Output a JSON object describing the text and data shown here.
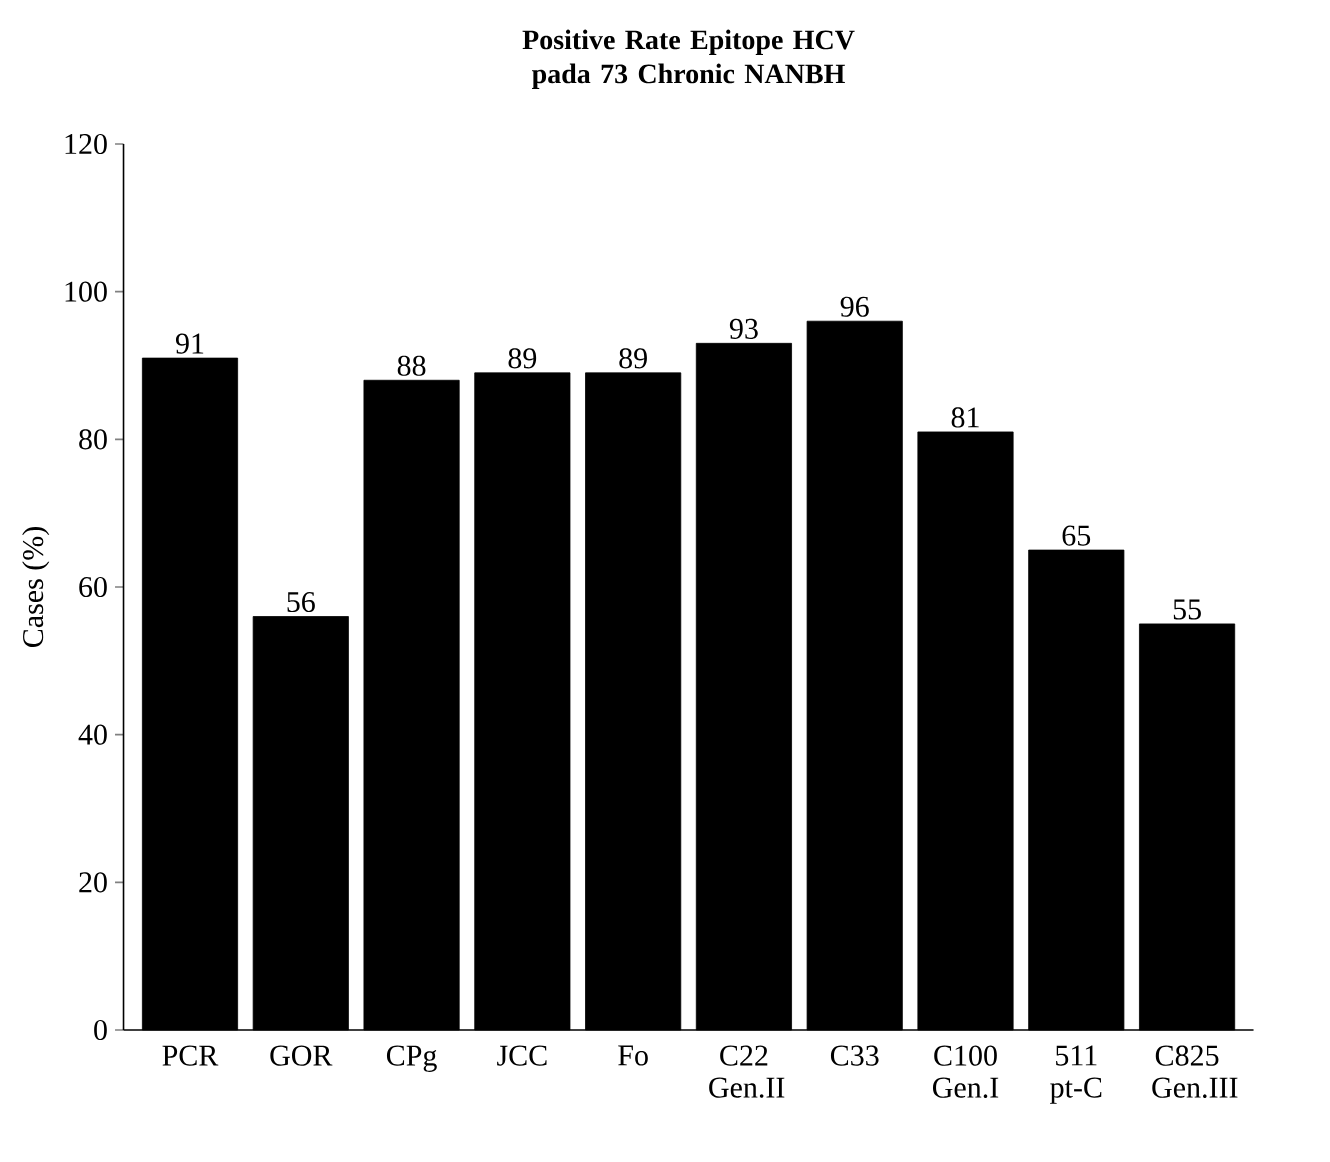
{
  "chart_data": {
    "type": "bar",
    "title": "Positive Rate Epitope HCV pada 73 Chronic NANBH",
    "ylabel": "Cases (%)",
    "categories": [
      "PCR",
      "GOR",
      "CPg",
      "JCC",
      "Fo",
      "C22 Gen.II",
      "C33",
      "C100 Gen.I",
      "511 pt-C",
      "C825 Gen.III"
    ],
    "values": [
      91,
      56,
      88,
      89,
      89,
      93,
      96,
      81,
      65,
      55
    ],
    "color": "#000000",
    "ylim": [
      0,
      120
    ],
    "yticks": [
      0,
      20,
      40,
      60,
      80,
      100,
      120
    ],
    "data_labels": true,
    "grid": false
  }
}
